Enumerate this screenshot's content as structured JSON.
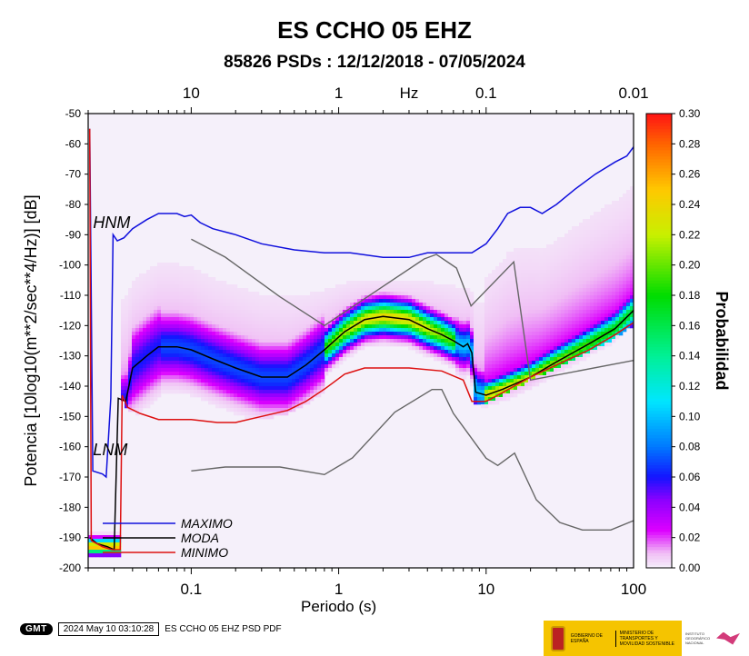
{
  "title": "ES CCHO 05 EHZ",
  "subtitle": "85826 PSDs : 12/12/2018 - 07/05/2024",
  "footer": {
    "badge": "GMT",
    "timestamp": "2024 May 10 03:10:28",
    "caption": "ES CCHO 05 EHZ PSD PDF"
  },
  "logos": {
    "gov": "GOBIERNO DE ESPAÑA",
    "ministry": "MINISTERIO DE TRANSPORTES Y MOVILIDAD SOSTENIBLE",
    "ign": "INSTITUTO GEOGRÁFICO NACIONAL"
  },
  "chart_data": {
    "type": "heatmap",
    "xlabel": "Periodo (s)",
    "ylabel": "Potencia [10log10(m**2/sec**4/Hz)] [dB]",
    "top_axis_label": "Hz",
    "x_scale": "log",
    "xlim": [
      0.02,
      100
    ],
    "ylim": [
      -200,
      -50
    ],
    "x_ticks": [
      0.1,
      1,
      10,
      100
    ],
    "x_tick_labels": [
      "0.1",
      "1",
      "10",
      "100"
    ],
    "top_ticks_period": [
      0.1,
      1,
      10,
      100
    ],
    "top_tick_labels": [
      "10",
      "1",
      "0.1",
      "0.01"
    ],
    "y_ticks": [
      -200,
      -190,
      -180,
      -170,
      -160,
      -150,
      -140,
      -130,
      -120,
      -110,
      -100,
      -90,
      -80,
      -70,
      -60,
      -50
    ],
    "colorbar": {
      "label": "Probabilidad",
      "range": [
        0,
        0.3
      ],
      "ticks": [
        0.0,
        0.02,
        0.04,
        0.06,
        0.08,
        0.1,
        0.12,
        0.14,
        0.16,
        0.18,
        0.2,
        0.22,
        0.24,
        0.26,
        0.28,
        0.3
      ],
      "tick_labels": [
        "0.00",
        "0.02",
        "0.04",
        "0.06",
        "0.08",
        "0.10",
        "0.12",
        "0.14",
        "0.16",
        "0.18",
        "0.20",
        "0.22",
        "0.24",
        "0.26",
        "0.28",
        "0.30"
      ]
    },
    "annotations": [
      {
        "text": "HNM",
        "period": 0.021,
        "db": -89
      },
      {
        "text": "LNM",
        "period": 0.021,
        "db": -164
      }
    ],
    "legend": {
      "placement": "bottom-left",
      "entries": [
        {
          "name": "MAXIMO",
          "color": "#1010dd"
        },
        {
          "name": "MODA",
          "color": "#000000"
        },
        {
          "name": "MINIMO",
          "color": "#dd1010"
        }
      ]
    },
    "series": [
      {
        "name": "MAXIMO",
        "color": "#1010dd",
        "points": [
          [
            0.0205,
            -55
          ],
          [
            0.0215,
            -168
          ],
          [
            0.025,
            -169
          ],
          [
            0.0265,
            -170
          ],
          [
            0.0285,
            -144
          ],
          [
            0.0295,
            -90
          ],
          [
            0.0315,
            -92
          ],
          [
            0.035,
            -91
          ],
          [
            0.04,
            -88
          ],
          [
            0.05,
            -85
          ],
          [
            0.06,
            -83
          ],
          [
            0.07,
            -83
          ],
          [
            0.08,
            -83
          ],
          [
            0.09,
            -84
          ],
          [
            0.1,
            -83.5
          ],
          [
            0.115,
            -86
          ],
          [
            0.14,
            -88
          ],
          [
            0.2,
            -90
          ],
          [
            0.3,
            -93
          ],
          [
            0.5,
            -95
          ],
          [
            0.8,
            -96
          ],
          [
            1.2,
            -96
          ],
          [
            2,
            -97.5
          ],
          [
            3,
            -97.5
          ],
          [
            4,
            -96
          ],
          [
            6,
            -96
          ],
          [
            8,
            -96
          ],
          [
            10,
            -93
          ],
          [
            12,
            -88
          ],
          [
            14,
            -83
          ],
          [
            17,
            -81
          ],
          [
            20,
            -81
          ],
          [
            24,
            -83
          ],
          [
            30,
            -80
          ],
          [
            40,
            -75
          ],
          [
            55,
            -70
          ],
          [
            75,
            -66
          ],
          [
            90,
            -64
          ],
          [
            100,
            -61
          ]
        ]
      },
      {
        "name": "MODA",
        "color": "#000000",
        "points": [
          [
            0.0205,
            -190
          ],
          [
            0.023,
            -192
          ],
          [
            0.027,
            -193
          ],
          [
            0.03,
            -194
          ],
          [
            0.032,
            -144
          ],
          [
            0.036,
            -145
          ],
          [
            0.04,
            -134
          ],
          [
            0.05,
            -130
          ],
          [
            0.06,
            -127
          ],
          [
            0.08,
            -127
          ],
          [
            0.1,
            -128
          ],
          [
            0.14,
            -131
          ],
          [
            0.2,
            -134
          ],
          [
            0.3,
            -137
          ],
          [
            0.45,
            -137
          ],
          [
            0.6,
            -133
          ],
          [
            0.8,
            -128
          ],
          [
            1.1,
            -122
          ],
          [
            1.5,
            -118
          ],
          [
            2,
            -117
          ],
          [
            3,
            -118
          ],
          [
            4,
            -121
          ],
          [
            5,
            -123
          ],
          [
            6,
            -125
          ],
          [
            7,
            -127
          ],
          [
            7.5,
            -126
          ],
          [
            8,
            -129
          ],
          [
            8.5,
            -142
          ],
          [
            10,
            -143
          ],
          [
            13,
            -141
          ],
          [
            20,
            -137
          ],
          [
            30,
            -132
          ],
          [
            50,
            -126
          ],
          [
            75,
            -121
          ],
          [
            100,
            -115
          ]
        ]
      },
      {
        "name": "MINIMO",
        "color": "#dd1010",
        "points": [
          [
            0.0205,
            -55
          ],
          [
            0.021,
            -191
          ],
          [
            0.025,
            -193
          ],
          [
            0.029,
            -194
          ],
          [
            0.033,
            -194
          ],
          [
            0.034,
            -143
          ],
          [
            0.037,
            -147
          ],
          [
            0.045,
            -149
          ],
          [
            0.06,
            -151
          ],
          [
            0.1,
            -151
          ],
          [
            0.15,
            -152
          ],
          [
            0.2,
            -152
          ],
          [
            0.3,
            -150
          ],
          [
            0.45,
            -148
          ],
          [
            0.6,
            -145
          ],
          [
            0.8,
            -141
          ],
          [
            1.1,
            -136
          ],
          [
            1.5,
            -134
          ],
          [
            3,
            -134
          ],
          [
            5,
            -135
          ],
          [
            7,
            -138
          ],
          [
            8,
            -145
          ],
          [
            10,
            -145
          ],
          [
            12,
            -143
          ],
          [
            20,
            -137
          ],
          [
            30,
            -133
          ],
          [
            50,
            -128
          ],
          [
            75,
            -123
          ],
          [
            100,
            -119
          ]
        ]
      },
      {
        "name": "HNM",
        "color": "#666666",
        "points": [
          [
            0.1,
            -91.5
          ],
          [
            0.17,
            -97.4
          ],
          [
            0.4,
            -110.5
          ],
          [
            0.8,
            -120
          ],
          [
            3.8,
            -98
          ],
          [
            4.6,
            -96.5
          ],
          [
            6.3,
            -101
          ],
          [
            7.9,
            -113.5
          ],
          [
            15.4,
            -99
          ],
          [
            20,
            -138
          ],
          [
            100,
            -131.5
          ]
        ]
      },
      {
        "name": "LNM",
        "color": "#666666",
        "points": [
          [
            0.1,
            -168
          ],
          [
            0.17,
            -166.7
          ],
          [
            0.4,
            -166.7
          ],
          [
            0.8,
            -169.2
          ],
          [
            1.24,
            -163.7
          ],
          [
            2.4,
            -148.6
          ],
          [
            4.3,
            -141.1
          ],
          [
            5,
            -141.1
          ],
          [
            6,
            -149
          ],
          [
            10,
            -163.8
          ],
          [
            12,
            -166.2
          ],
          [
            15.6,
            -162.1
          ],
          [
            21.9,
            -177.5
          ],
          [
            31.6,
            -185
          ],
          [
            45,
            -187.5
          ],
          [
            70,
            -187.5
          ],
          [
            100,
            -184.4
          ]
        ]
      }
    ],
    "density_model": {
      "description_of_mode": "probability density concentrated around MODA curve between MINIMO and MAXIMO",
      "peak_probability": 0.3
    }
  }
}
